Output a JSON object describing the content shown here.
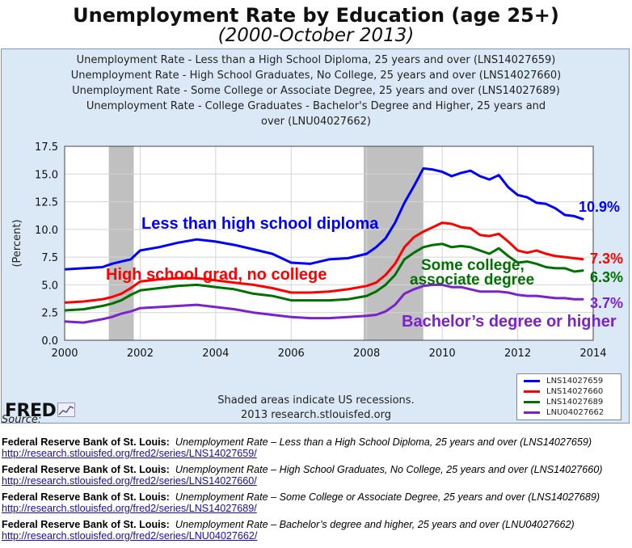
{
  "page_title": "Unemployment Rate by Education (age 25+)",
  "page_subtitle": "(2000-October 2013)",
  "chart_data": {
    "type": "line",
    "title_lines": [
      "Unemployment Rate - Less than a High School Diploma, 25 years and over (LNS14027659)",
      "Unemployment Rate - High School Graduates, No College, 25 years and over (LNS14027660)",
      "Unemployment Rate - Some College or Associate Degree, 25 years and over (LNS14027689)",
      "Unemployment Rate - College Graduates - Bachelor's Degree and Higher, 25 years and",
      "over (LNU04027662)"
    ],
    "ylabel": "(Percent)",
    "xlabel": "",
    "xlim": [
      2000,
      2014
    ],
    "ylim": [
      0,
      17.5
    ],
    "x_ticks": [
      2000,
      2002,
      2004,
      2006,
      2008,
      2010,
      2012,
      2014
    ],
    "y_ticks": [
      "0.0",
      "2.5",
      "5.0",
      "7.5",
      "10.0",
      "12.5",
      "15.0",
      "17.5"
    ],
    "grid": true,
    "recessions": [
      [
        2001.17,
        2001.83
      ],
      [
        2007.92,
        2009.5
      ]
    ],
    "series": [
      {
        "name": "LNS14027659",
        "color": "#0000ff",
        "annotation": "Less than high school diploma",
        "end_label": "10.9%",
        "x": [
          2000.0,
          2000.5,
          2001.0,
          2001.25,
          2001.5,
          2001.75,
          2002.0,
          2002.5,
          2003.0,
          2003.5,
          2004.0,
          2004.5,
          2005.0,
          2005.5,
          2006.0,
          2006.5,
          2007.0,
          2007.5,
          2008.0,
          2008.25,
          2008.5,
          2008.75,
          2009.0,
          2009.25,
          2009.5,
          2009.75,
          2010.0,
          2010.25,
          2010.5,
          2010.75,
          2011.0,
          2011.25,
          2011.5,
          2011.75,
          2012.0,
          2012.25,
          2012.5,
          2012.75,
          2013.0,
          2013.25,
          2013.5,
          2013.75
        ],
        "y": [
          6.4,
          6.5,
          6.6,
          6.9,
          7.1,
          7.3,
          8.1,
          8.4,
          8.8,
          9.1,
          8.9,
          8.6,
          8.2,
          7.8,
          7.0,
          6.9,
          7.3,
          7.4,
          7.8,
          8.4,
          9.2,
          10.6,
          12.4,
          13.9,
          15.5,
          15.4,
          15.2,
          14.8,
          15.1,
          15.3,
          14.8,
          14.5,
          14.9,
          13.8,
          13.1,
          12.9,
          12.4,
          12.3,
          11.9,
          11.3,
          11.2,
          10.9
        ]
      },
      {
        "name": "LNS14027660",
        "color": "#ff0000",
        "annotation": "High school grad, no college",
        "end_label": "7.3%",
        "x": [
          2000.0,
          2000.5,
          2001.0,
          2001.25,
          2001.5,
          2001.75,
          2002.0,
          2002.5,
          2003.0,
          2003.5,
          2004.0,
          2004.5,
          2005.0,
          2005.5,
          2006.0,
          2006.5,
          2007.0,
          2007.5,
          2008.0,
          2008.25,
          2008.5,
          2008.75,
          2009.0,
          2009.25,
          2009.5,
          2009.75,
          2010.0,
          2010.25,
          2010.5,
          2010.75,
          2011.0,
          2011.25,
          2011.5,
          2011.75,
          2012.0,
          2012.25,
          2012.5,
          2012.75,
          2013.0,
          2013.25,
          2013.5,
          2013.75
        ],
        "y": [
          3.4,
          3.5,
          3.7,
          3.9,
          4.2,
          4.7,
          5.3,
          5.5,
          5.6,
          5.6,
          5.4,
          5.2,
          5.0,
          4.7,
          4.3,
          4.3,
          4.4,
          4.6,
          4.9,
          5.2,
          5.9,
          6.9,
          8.4,
          9.3,
          9.8,
          10.2,
          10.6,
          10.5,
          10.2,
          10.1,
          9.5,
          9.4,
          9.6,
          8.9,
          8.1,
          7.9,
          8.1,
          7.8,
          7.6,
          7.5,
          7.4,
          7.3
        ]
      },
      {
        "name": "LNS14027689",
        "color": "#007000",
        "annotation": "Some college, associate degree",
        "end_label": "6.3%",
        "x": [
          2000.0,
          2000.5,
          2001.0,
          2001.25,
          2001.5,
          2001.75,
          2002.0,
          2002.5,
          2003.0,
          2003.5,
          2004.0,
          2004.5,
          2005.0,
          2005.5,
          2006.0,
          2006.5,
          2007.0,
          2007.5,
          2008.0,
          2008.25,
          2008.5,
          2008.75,
          2009.0,
          2009.25,
          2009.5,
          2009.75,
          2010.0,
          2010.25,
          2010.5,
          2010.75,
          2011.0,
          2011.25,
          2011.5,
          2011.75,
          2012.0,
          2012.25,
          2012.5,
          2012.75,
          2013.0,
          2013.25,
          2013.5,
          2013.75
        ],
        "y": [
          2.7,
          2.8,
          3.1,
          3.3,
          3.6,
          4.1,
          4.5,
          4.7,
          4.9,
          5.0,
          4.8,
          4.6,
          4.2,
          4.0,
          3.6,
          3.6,
          3.6,
          3.7,
          4.0,
          4.4,
          5.0,
          5.9,
          7.3,
          7.9,
          8.4,
          8.6,
          8.7,
          8.4,
          8.5,
          8.4,
          8.1,
          7.8,
          8.3,
          7.6,
          7.0,
          7.1,
          6.9,
          6.6,
          6.5,
          6.5,
          6.2,
          6.3
        ]
      },
      {
        "name": "LNU04027662",
        "color": "#7b22cc",
        "annotation": "Bachelor’s degree or higher",
        "end_label": "3.7%",
        "x": [
          2000.0,
          2000.5,
          2001.0,
          2001.25,
          2001.5,
          2001.75,
          2002.0,
          2002.5,
          2003.0,
          2003.5,
          2004.0,
          2004.5,
          2005.0,
          2005.5,
          2006.0,
          2006.5,
          2007.0,
          2007.5,
          2008.0,
          2008.25,
          2008.5,
          2008.75,
          2009.0,
          2009.25,
          2009.5,
          2009.75,
          2010.0,
          2010.25,
          2010.5,
          2010.75,
          2011.0,
          2011.25,
          2011.5,
          2011.75,
          2012.0,
          2012.25,
          2012.5,
          2012.75,
          2013.0,
          2013.25,
          2013.5,
          2013.75
        ],
        "y": [
          1.7,
          1.6,
          1.9,
          2.1,
          2.4,
          2.6,
          2.9,
          3.0,
          3.1,
          3.2,
          3.0,
          2.8,
          2.5,
          2.3,
          2.1,
          2.0,
          2.0,
          2.1,
          2.2,
          2.3,
          2.6,
          3.2,
          4.2,
          4.6,
          4.9,
          5.0,
          5.0,
          4.8,
          4.8,
          4.6,
          4.4,
          4.4,
          4.4,
          4.3,
          4.1,
          4.0,
          4.0,
          3.9,
          3.8,
          3.8,
          3.7,
          3.7
        ]
      }
    ],
    "legend_position": "bottom-right",
    "note_line1": "Shaded areas indicate US recessions.",
    "note_line2": "2013 research.stlouisfed.org"
  },
  "logo_text": "FRED",
  "source_label": "Source:",
  "sources": [
    {
      "org": "Federal Reserve Bank of St. Louis:",
      "desc": "Unemployment Rate – Less than a High School Diploma, 25 years and over (LNS14027659)",
      "link": "http://research.stlouisfed.org/fred2/series/LNS14027659/"
    },
    {
      "org": "Federal Reserve Bank of St. Louis:",
      "desc": "Unemployment Rate – High School Graduates, No College, 25 years and over (LNS14027660)",
      "link": "http://research.stlouisfed.org/fred2/series/LNS14027660/"
    },
    {
      "org": "Federal Reserve Bank of St. Louis:",
      "desc": "Unemployment Rate – Some College or Associate Degree, 25 years and over (LNS14027689)",
      "link": "http://research.stlouisfed.org/fred2/series/LNS14027689/"
    },
    {
      "org": "Federal Reserve Bank of St. Louis:",
      "desc": "Unemployment Rate – Bachelor’s degree and higher, 25 years and over (LNU04027662)",
      "link": "http://research.stlouisfed.org/fred2/series/LNU04027662/"
    }
  ]
}
